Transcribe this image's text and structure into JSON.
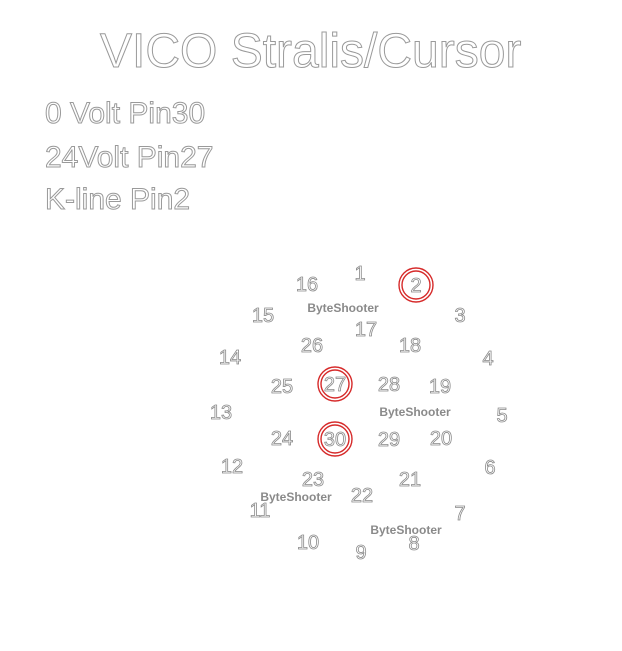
{
  "title": "VICO Stralis/Cursor",
  "legend": [
    "0 Volt Pin30",
    "24Volt Pin27",
    "K-line Pin2"
  ],
  "pins": [
    "1",
    "2",
    "3",
    "4",
    "5",
    "6",
    "7",
    "8",
    "9",
    "10",
    "11",
    "12",
    "13",
    "14",
    "15",
    "16",
    "17",
    "18",
    "19",
    "20",
    "21",
    "22",
    "23",
    "24",
    "25",
    "26",
    "27",
    "28",
    "29",
    "30"
  ],
  "highlighted_pins": [
    "2",
    "27",
    "30"
  ],
  "highlight_color": "#d62a2a",
  "watermark_text": "ByteShooter",
  "watermarks": [
    "ByteShooter",
    "ByteShooter",
    "ByteShooter",
    "ByteShooter"
  ]
}
